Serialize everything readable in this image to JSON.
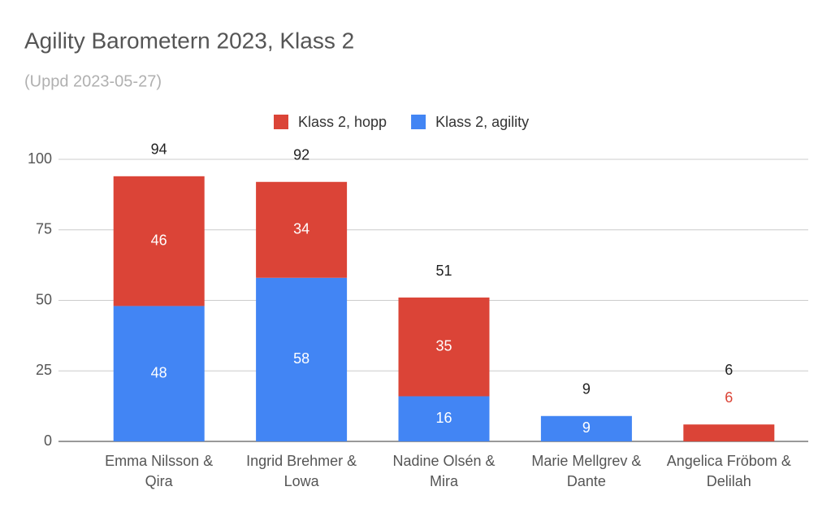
{
  "chart_data": {
    "type": "bar",
    "stacked": true,
    "title": "Agility Barometern 2023, Klass 2",
    "subtitle": "(Uppd 2023-05-27)",
    "categories": [
      "Emma Nilsson & Qira",
      "Ingrid Brehmer & Lowa",
      "Nadine Olsén & Mira",
      "Marie Mellgrev & Dante",
      "Angelica Fröbom & Delilah"
    ],
    "series": [
      {
        "name": "Klass 2, hopp",
        "color": "#db4437",
        "values": [
          46,
          34,
          35,
          null,
          6
        ]
      },
      {
        "name": "Klass 2, agility",
        "color": "#4285f4",
        "values": [
          48,
          58,
          16,
          9,
          null
        ]
      }
    ],
    "totals": [
      94,
      92,
      51,
      9,
      6
    ],
    "ylim": [
      0,
      100
    ],
    "yticks": [
      0,
      25,
      50,
      75,
      100
    ],
    "grid": true,
    "legend": "top"
  }
}
